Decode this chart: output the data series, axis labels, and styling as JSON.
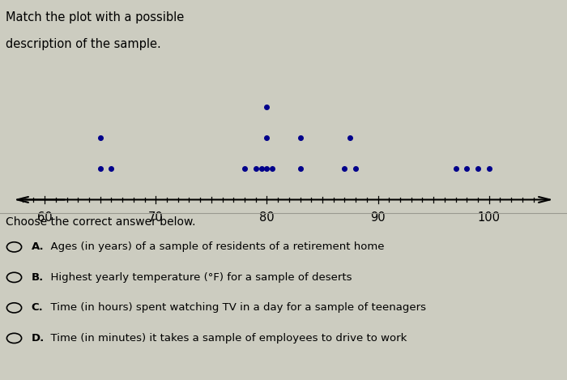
{
  "title_line1": "Match the plot with a possible",
  "title_line2": "description of the sample.",
  "dot_data": [
    65,
    66,
    65,
    78,
    79,
    79,
    79,
    79,
    80,
    83,
    83,
    87,
    88,
    87,
    97,
    98,
    99,
    100
  ],
  "dot_data_level2": [
    65,
    79,
    83,
    87
  ],
  "dot_data_level3": [
    79
  ],
  "xlim": [
    57,
    106
  ],
  "xticks": [
    60,
    70,
    80,
    90,
    100
  ],
  "dot_color": "#00008B",
  "dot_size": 18,
  "choose_text": "Choose the correct answer below.",
  "answer_choices": [
    "A.  Ages (in years) of a sample of residents of a retirement home",
    "B.  Highest yearly temperature (°F) for a sample of deserts",
    "C.  Time (in hours) spent watching TV in a day for a sample of teenagers",
    "D.  Time (in minutes) it takes a sample of employees to drive to work"
  ],
  "background_color": "#ccccc0"
}
